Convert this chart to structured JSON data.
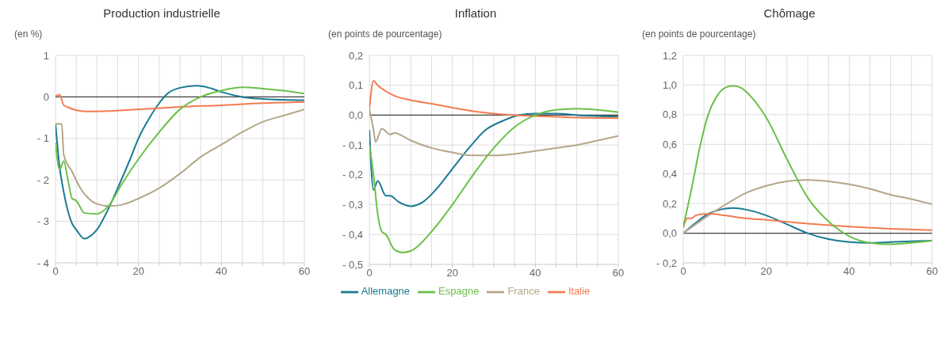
{
  "chart_data": [
    {
      "type": "line",
      "title": "Production industrielle",
      "ylabel": "(en %)",
      "ylim": [
        -4,
        1
      ],
      "yticks": [
        {
          "value": -4,
          "label": "- 4"
        },
        {
          "value": -3,
          "label": "- 3"
        },
        {
          "value": -2,
          "label": "- 2"
        },
        {
          "value": -1,
          "label": "- 1"
        },
        0,
        1
      ],
      "xlim": [
        0,
        60
      ],
      "xticks": [
        0,
        {
          "value": 5,
          "label": null
        },
        {
          "value": 10,
          "label": null
        },
        {
          "value": 15,
          "label": null
        },
        20,
        {
          "value": 25,
          "label": null
        },
        {
          "value": 30,
          "label": null
        },
        {
          "value": 35,
          "label": null
        },
        40,
        {
          "value": 45,
          "label": null
        },
        {
          "value": 50,
          "label": null
        },
        {
          "value": 55,
          "label": null
        },
        60
      ],
      "grid": true,
      "legend": false,
      "ref_lines": [
        {
          "axis": "y",
          "value": 0,
          "color": "#404040"
        }
      ],
      "series": [
        {
          "color": "#1a7a94",
          "x": [
            0,
            1,
            2,
            3,
            4,
            5,
            7,
            8,
            10,
            12,
            15,
            18,
            20,
            23,
            25,
            27,
            30,
            34,
            37,
            40,
            45,
            50,
            55,
            60
          ],
          "values": [
            -0.65,
            -1.7,
            -2.3,
            -2.75,
            -3.05,
            -3.2,
            -3.42,
            -3.38,
            -3.2,
            -2.85,
            -2.2,
            -1.5,
            -1.0,
            -0.45,
            -0.15,
            0.08,
            0.22,
            0.27,
            0.22,
            0.12,
            0.0,
            -0.05,
            -0.07,
            -0.08
          ]
        },
        {
          "color": "#b5a68a",
          "x": [
            0,
            1,
            1.5,
            2,
            4,
            6,
            8,
            10,
            13,
            16,
            20,
            25,
            30,
            35,
            40,
            45,
            50,
            55,
            60
          ],
          "values": [
            -0.65,
            -0.65,
            -0.65,
            -1.4,
            -1.8,
            -2.2,
            -2.45,
            -2.58,
            -2.63,
            -2.6,
            -2.45,
            -2.2,
            -1.85,
            -1.45,
            -1.15,
            -0.85,
            -0.6,
            -0.45,
            -0.3
          ]
        },
        {
          "color": "#f47c50",
          "x": [
            0,
            1,
            2,
            3,
            5,
            8,
            10,
            20,
            30,
            40,
            50,
            60
          ],
          "values": [
            0.02,
            0.05,
            -0.2,
            -0.25,
            -0.32,
            -0.35,
            -0.35,
            -0.3,
            -0.24,
            -0.2,
            -0.15,
            -0.12
          ]
        },
        {
          "color": "#6cc04a",
          "x": [
            0,
            1,
            2,
            3,
            4,
            5,
            7,
            10,
            13,
            16,
            20,
            25,
            30,
            35,
            40,
            45,
            50,
            55,
            60
          ],
          "values": [
            -1.1,
            -1.75,
            -1.55,
            -2.0,
            -2.45,
            -2.5,
            -2.8,
            -2.82,
            -2.6,
            -2.1,
            -1.5,
            -0.85,
            -0.3,
            0.0,
            0.15,
            0.23,
            0.2,
            0.15,
            0.08
          ]
        }
      ]
    },
    {
      "type": "line",
      "title": "Inflation",
      "ylabel": "(en points de pourcentage)",
      "ylim": [
        -0.5,
        0.2
      ],
      "yticks": [
        {
          "value": -0.5,
          "label": "- 0,5"
        },
        {
          "value": -0.4,
          "label": "- 0,4"
        },
        {
          "value": -0.3,
          "label": "- 0,3"
        },
        {
          "value": -0.2,
          "label": "- 0,2"
        },
        {
          "value": -0.1,
          "label": "- 0,1"
        },
        {
          "value": 0,
          "label": "0,0"
        },
        {
          "value": 0.1,
          "label": "0,1"
        },
        {
          "value": 0.2,
          "label": "0,2"
        }
      ],
      "xlim": [
        0,
        60
      ],
      "xticks": [
        0,
        {
          "value": 5,
          "label": null
        },
        {
          "value": 10,
          "label": null
        },
        {
          "value": 15,
          "label": null
        },
        20,
        {
          "value": 25,
          "label": null
        },
        {
          "value": 30,
          "label": null
        },
        {
          "value": 35,
          "label": null
        },
        40,
        {
          "value": 45,
          "label": null
        },
        {
          "value": 50,
          "label": null
        },
        {
          "value": 55,
          "label": null
        },
        60
      ],
      "grid": true,
      "legend": "bottom",
      "ref_lines": [
        {
          "axis": "y",
          "value": 0,
          "color": "#404040"
        }
      ],
      "series": [
        {
          "name": "Allemagne",
          "color": "#1a7a94",
          "x": [
            0,
            1,
            2,
            4,
            5,
            7,
            10,
            13,
            16,
            20,
            24,
            28,
            32,
            36,
            40,
            45,
            50,
            60
          ],
          "values": [
            -0.05,
            -0.25,
            -0.22,
            -0.27,
            -0.27,
            -0.29,
            -0.305,
            -0.29,
            -0.25,
            -0.18,
            -0.11,
            -0.05,
            -0.02,
            0.0,
            0.005,
            0.005,
            0.0,
            -0.005
          ]
        },
        {
          "name": "France",
          "color": "#b5a68a",
          "x": [
            0,
            1,
            1.5,
            3,
            5,
            6,
            10,
            15,
            20,
            25,
            30,
            35,
            40,
            45,
            50,
            55,
            60
          ],
          "values": [
            0.02,
            -0.05,
            -0.09,
            -0.045,
            -0.065,
            -0.06,
            -0.085,
            -0.11,
            -0.125,
            -0.135,
            -0.135,
            -0.13,
            -0.12,
            -0.11,
            -0.1,
            -0.085,
            -0.07
          ]
        },
        {
          "name": "Italie",
          "color": "#f47c50",
          "x": [
            0,
            1,
            2,
            4,
            6,
            10,
            15,
            20,
            25,
            30,
            35,
            40,
            50,
            60
          ],
          "values": [
            0.02,
            0.115,
            0.1,
            0.08,
            0.065,
            0.05,
            0.038,
            0.025,
            0.013,
            0.005,
            0.0,
            -0.003,
            -0.008,
            -0.01
          ]
        },
        {
          "name": "Espagne",
          "color": "#6cc04a",
          "x": [
            0,
            1,
            2,
            3,
            4,
            6,
            8,
            10,
            12,
            15,
            20,
            25,
            30,
            35,
            40,
            45,
            50,
            55,
            60
          ],
          "values": [
            -0.1,
            -0.2,
            -0.33,
            -0.39,
            -0.4,
            -0.45,
            -0.46,
            -0.455,
            -0.435,
            -0.39,
            -0.3,
            -0.2,
            -0.11,
            -0.04,
            0.0,
            0.018,
            0.022,
            0.018,
            0.01
          ]
        }
      ]
    },
    {
      "type": "line",
      "title": "Chômage",
      "ylabel": "(en points de pourcentage)",
      "ylim": [
        -0.2,
        1.2
      ],
      "yticks": [
        {
          "value": -0.2,
          "label": "- 0,2"
        },
        {
          "value": 0,
          "label": "0,0"
        },
        {
          "value": 0.2,
          "label": "0,2"
        },
        {
          "value": 0.4,
          "label": "0,4"
        },
        {
          "value": 0.6,
          "label": "0,6"
        },
        {
          "value": 0.8,
          "label": "0,8"
        },
        {
          "value": 1,
          "label": "1,0"
        },
        {
          "value": 1.2,
          "label": "1,2"
        }
      ],
      "xlim": [
        0,
        60
      ],
      "xticks": [
        0,
        {
          "value": 5,
          "label": null
        },
        {
          "value": 10,
          "label": null
        },
        {
          "value": 15,
          "label": null
        },
        20,
        {
          "value": 25,
          "label": null
        },
        {
          "value": 30,
          "label": null
        },
        {
          "value": 35,
          "label": null
        },
        40,
        {
          "value": 45,
          "label": null
        },
        {
          "value": 50,
          "label": null
        },
        {
          "value": 55,
          "label": null
        },
        60
      ],
      "grid": true,
      "legend": false,
      "ref_lines": [
        {
          "axis": "y",
          "value": 0,
          "color": "#404040"
        }
      ],
      "series": [
        {
          "color": "#1a7a94",
          "x": [
            0,
            3,
            6,
            9,
            12,
            15,
            20,
            25,
            30,
            35,
            40,
            45,
            50,
            55,
            60
          ],
          "values": [
            0,
            0.07,
            0.13,
            0.16,
            0.17,
            0.16,
            0.12,
            0.06,
            0.0,
            -0.04,
            -0.06,
            -0.065,
            -0.06,
            -0.055,
            -0.05
          ]
        },
        {
          "color": "#b5a68a",
          "x": [
            0,
            5,
            10,
            15,
            20,
            25,
            30,
            35,
            40,
            45,
            50,
            55,
            60
          ],
          "values": [
            0.0,
            0.1,
            0.19,
            0.27,
            0.32,
            0.35,
            0.36,
            0.35,
            0.33,
            0.3,
            0.26,
            0.23,
            0.195
          ]
        },
        {
          "color": "#f47c50",
          "x": [
            0,
            1,
            2,
            3,
            5,
            7,
            10,
            15,
            20,
            30,
            40,
            50,
            60
          ],
          "values": [
            0.04,
            0.1,
            0.1,
            0.12,
            0.13,
            0.13,
            0.12,
            0.1,
            0.09,
            0.065,
            0.045,
            0.03,
            0.02
          ]
        },
        {
          "color": "#6cc04a",
          "x": [
            0,
            2,
            4,
            6,
            8,
            10,
            12,
            14,
            17,
            20,
            25,
            30,
            35,
            40,
            45,
            50,
            55,
            60
          ],
          "values": [
            0.04,
            0.3,
            0.58,
            0.8,
            0.92,
            0.98,
            0.995,
            0.98,
            0.9,
            0.78,
            0.5,
            0.24,
            0.08,
            -0.02,
            -0.065,
            -0.075,
            -0.065,
            -0.05
          ]
        }
      ]
    }
  ]
}
